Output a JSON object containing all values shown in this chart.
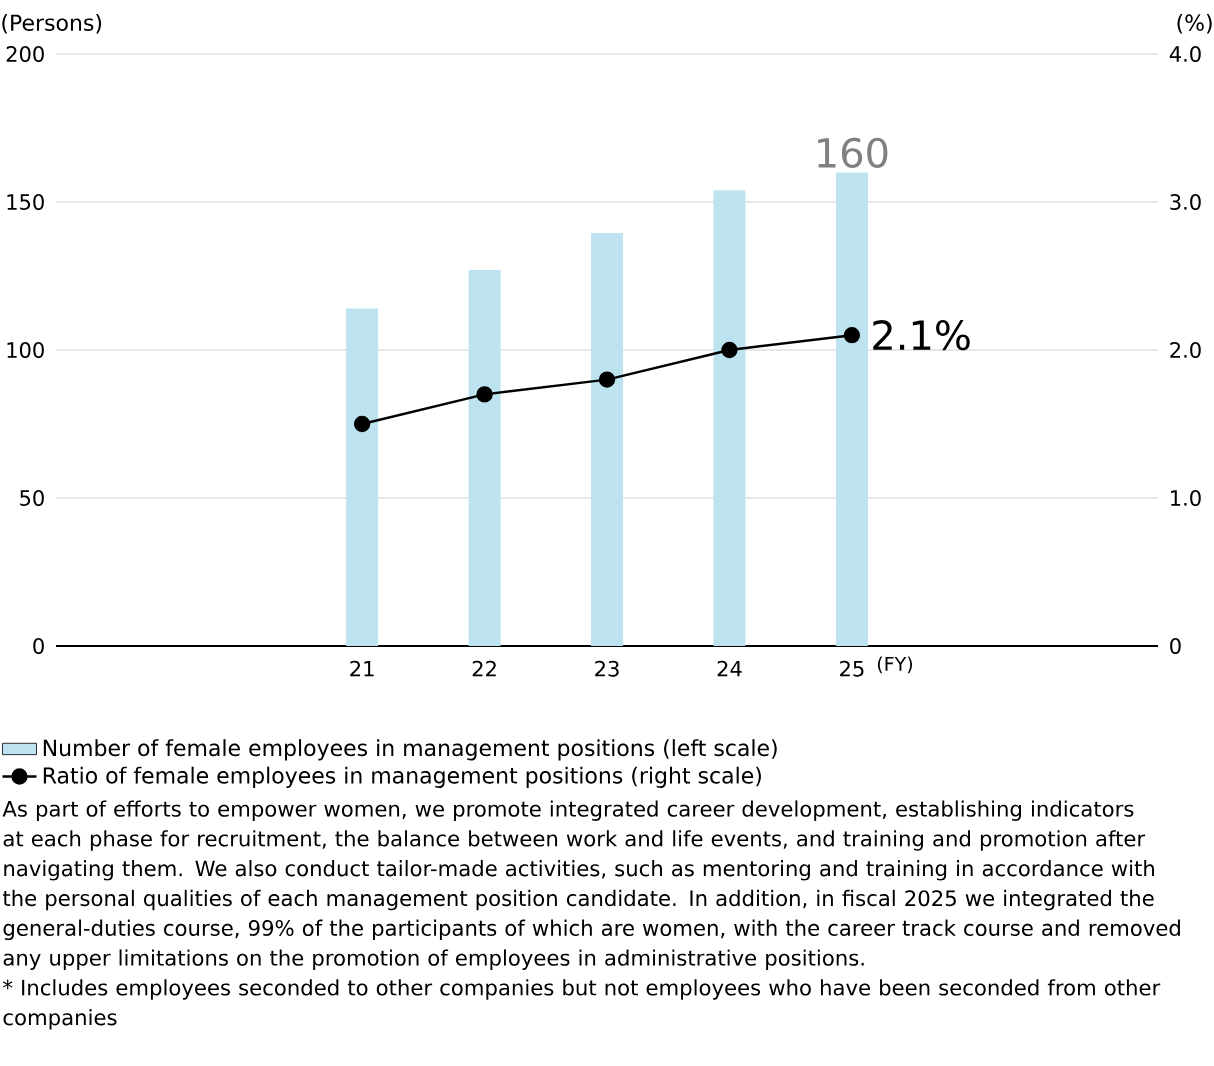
{
  "chart_data": {
    "type": "bar",
    "x": [
      21,
      22,
      23,
      24,
      25
    ],
    "xlim": [
      18.5,
      27.5
    ],
    "xticks": [
      21,
      22,
      23,
      24,
      25
    ],
    "xlabel": "(FY)",
    "ylabel": "(Persons)",
    "y2label": "(%)",
    "ylim": [
      0,
      200
    ],
    "yticks": [
      0,
      50,
      100,
      150,
      200
    ],
    "y2lim": [
      0,
      4
    ],
    "y2ticks": [
      {
        "value": 0,
        "label": "0"
      },
      {
        "value": 1,
        "label": "1.0"
      },
      {
        "value": 2,
        "label": "2.0"
      },
      {
        "value": 3,
        "label": "3.0"
      },
      {
        "value": 4,
        "label": "4.0"
      }
    ],
    "grid": "y",
    "legend": "bottom",
    "marker": "circle",
    "series": [
      {
        "name": "Number of female employees in management positions (left scale)",
        "color": "#bde3f1",
        "values": [
          114,
          127,
          139.5,
          154,
          160
        ],
        "value_labels": [
          null,
          null,
          null,
          null,
          "160"
        ]
      },
      {
        "name": "Ratio of female employees in management positions (right scale)",
        "type": "line",
        "axis": "y2",
        "color": "#000000",
        "values": [
          1.5,
          1.7,
          1.8,
          2.0,
          2.1
        ],
        "value_labels": [
          null,
          null,
          null,
          null,
          "2.1%"
        ]
      }
    ],
    "annotations": [
      "As part of efforts to empower women, we promote integrated career development, establishing indicators at each phase for recruitment, the balance between work and life events, and training and promotion after navigating them. We also conduct tailor-made activities, such as mentoring and training in accordance with the personal qualities of each management position candidate. In addition, in fiscal 2025 we integrated the general-duties course, 99% of the participants of which are women, with the career track course and removed any upper limitations on the promotion of employees in administrative positions.",
      "* Includes employees seconded to other companies but not employees who have been seconded from other companies"
    ]
  }
}
